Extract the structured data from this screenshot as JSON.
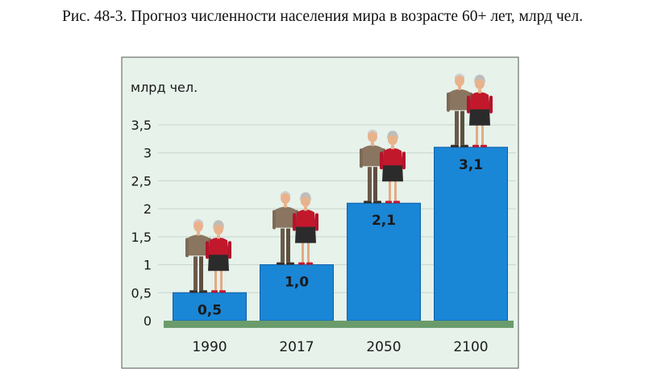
{
  "figure": {
    "caption": "Рис. 48-3. Прогноз численности населения мира в возрасте 60+ лет, млрд чел."
  },
  "chart_data": {
    "type": "bar",
    "title": "Рис. 48-3. Прогноз численности населения мира в возрасте 60+ лет, млрд чел.",
    "ylabel": "млрд чел.",
    "xlabel": "",
    "categories": [
      "1990",
      "2017",
      "2050",
      "2100"
    ],
    "values": [
      0.5,
      1.0,
      2.1,
      3.1
    ],
    "value_labels": [
      "0,5",
      "1,0",
      "2,1",
      "3,1"
    ],
    "yticks": [
      0,
      0.5,
      1,
      1.5,
      2,
      2.5,
      3,
      3.5
    ],
    "ytick_labels": [
      "0",
      "0,5",
      "1",
      "1,5",
      "2",
      "2,5",
      "3",
      "3,5"
    ],
    "ylim": [
      0,
      3.5
    ],
    "grid": true,
    "legend": "none",
    "colors": {
      "bar": "#1a86d6",
      "bar_edge": "#0d5fa8",
      "background": "#e6f2ea",
      "baseline": "#6b9b6b",
      "grid": "#c9d6cc",
      "frame": "#555555"
    },
    "icons": [
      "elderly-man-icon",
      "elderly-woman-icon"
    ]
  }
}
